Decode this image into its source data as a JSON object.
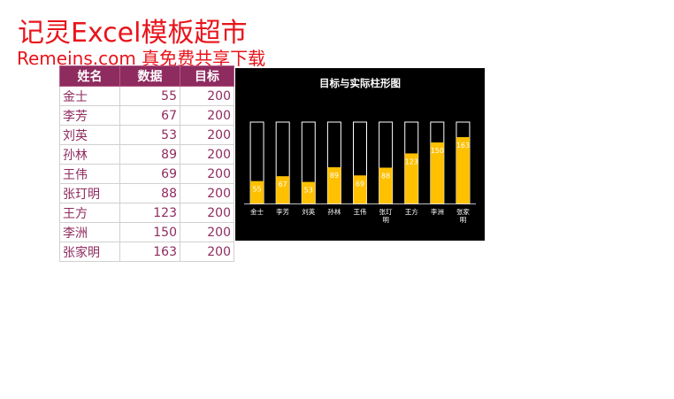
{
  "watermark": {
    "title": "记灵Excel模板超市",
    "subtitle": "Remeins.com 真免费共享下载"
  },
  "table": {
    "headers": [
      "姓名",
      "数据",
      "目标"
    ],
    "rows": [
      {
        "name": "金士",
        "value": "55",
        "target": "200"
      },
      {
        "name": "李芳",
        "value": "67",
        "target": "200"
      },
      {
        "name": "刘英",
        "value": "53",
        "target": "200"
      },
      {
        "name": "孙林",
        "value": "89",
        "target": "200"
      },
      {
        "name": "王伟",
        "value": "69",
        "target": "200"
      },
      {
        "name": "张玎明",
        "value": "88",
        "target": "200"
      },
      {
        "name": "王方",
        "value": "123",
        "target": "200"
      },
      {
        "name": "李洲",
        "value": "150",
        "target": "200"
      },
      {
        "name": "张家明",
        "value": "163",
        "target": "200"
      }
    ]
  },
  "colors": {
    "header_bg": "#8e2b5f",
    "cell_text": "#8e2b5f",
    "bar_actual": "#ffc000",
    "bar_target_outline": "#ffffff",
    "chart_bg": "#000000",
    "watermark": "#e8141b"
  },
  "chart_data": {
    "type": "bar",
    "title": "目标与实际柱形图",
    "categories": [
      "金士",
      "李芳",
      "刘英",
      "孙林",
      "王伟",
      "张玎明",
      "王方",
      "李洲",
      "张家明"
    ],
    "series": [
      {
        "name": "",
        "role": "target",
        "values": [
          200,
          200,
          200,
          200,
          200,
          200,
          200,
          200,
          200
        ]
      },
      {
        "name": "",
        "role": "actual",
        "values": [
          55,
          67,
          53,
          89,
          69,
          88,
          123,
          150,
          163
        ]
      }
    ],
    "data_labels": [
      "55",
      "67",
      "53",
      "89",
      "69",
      "88",
      "123",
      "150",
      "163"
    ],
    "ylim": [
      0,
      200
    ],
    "grid": false,
    "legend": "none",
    "overlap": true
  }
}
